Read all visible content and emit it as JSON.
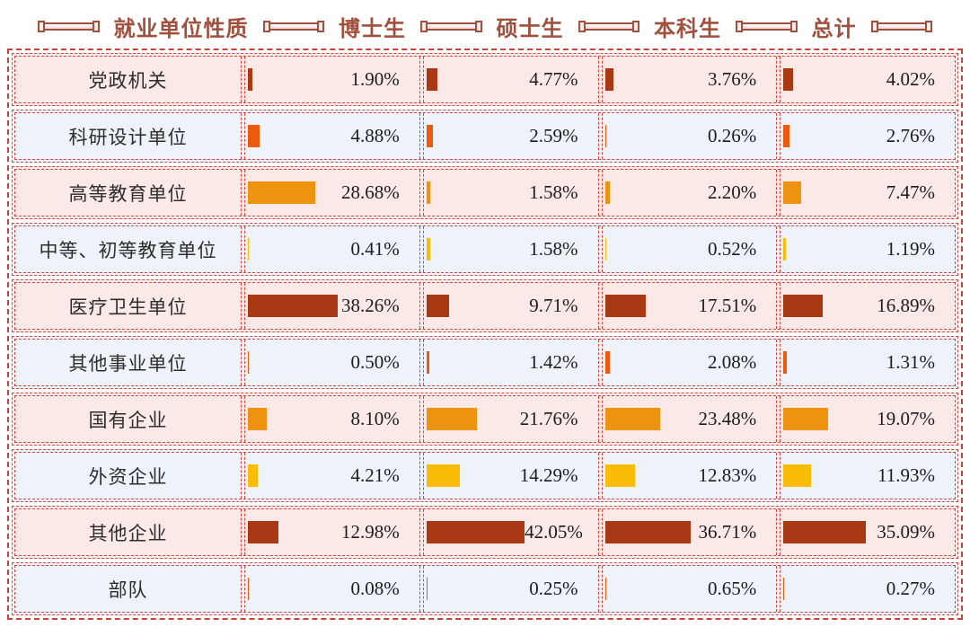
{
  "header": {
    "category_title": "就业单位性质"
  },
  "palette": {
    "header_text": "#A0503C",
    "dashed_border": "#D5483F",
    "row_bg_pink": "#FAE9E6",
    "row_bg_blue": "#EEF2F9",
    "bar_dark_red": "#A93815",
    "bar_orange_red": "#EE5A0C",
    "bar_orange": "#EE9310",
    "bar_yellow": "#FBBC05"
  },
  "chart_data": {
    "type": "bar",
    "title": "",
    "orientation": "horizontal",
    "unit": "%",
    "categories": [
      "党政机关",
      "科研设计单位",
      "高等教育单位",
      "中等、初等教育单位",
      "医疗卫生单位",
      "其他事业单位",
      "国有企业",
      "外资企业",
      "其他企业",
      "部队"
    ],
    "row_bar_colors": [
      "#A93815",
      "#EE5A0C",
      "#EE9310",
      "#FBBC05",
      "#A93815",
      "#EE5A0C",
      "#EE9310",
      "#FBBC05",
      "#A93815",
      "#EE5A0C"
    ],
    "series": [
      {
        "name": "博士生",
        "values": [
          1.9,
          4.88,
          28.68,
          0.41,
          38.26,
          0.5,
          8.1,
          4.21,
          12.98,
          0.08
        ]
      },
      {
        "name": "硕士生",
        "values": [
          4.77,
          2.59,
          1.58,
          1.58,
          9.71,
          1.42,
          21.76,
          14.29,
          42.05,
          0.25
        ]
      },
      {
        "name": "本科生",
        "values": [
          3.76,
          0.26,
          2.2,
          0.52,
          17.51,
          2.08,
          23.48,
          12.83,
          36.71,
          0.65
        ]
      },
      {
        "name": "总计",
        "values": [
          4.02,
          2.76,
          7.47,
          1.19,
          16.89,
          1.31,
          19.07,
          11.93,
          35.09,
          0.27
        ]
      }
    ],
    "value_label_format": "0.00%",
    "xlim": [
      0,
      45
    ],
    "legend_position": "top-header-row",
    "grid": false
  }
}
